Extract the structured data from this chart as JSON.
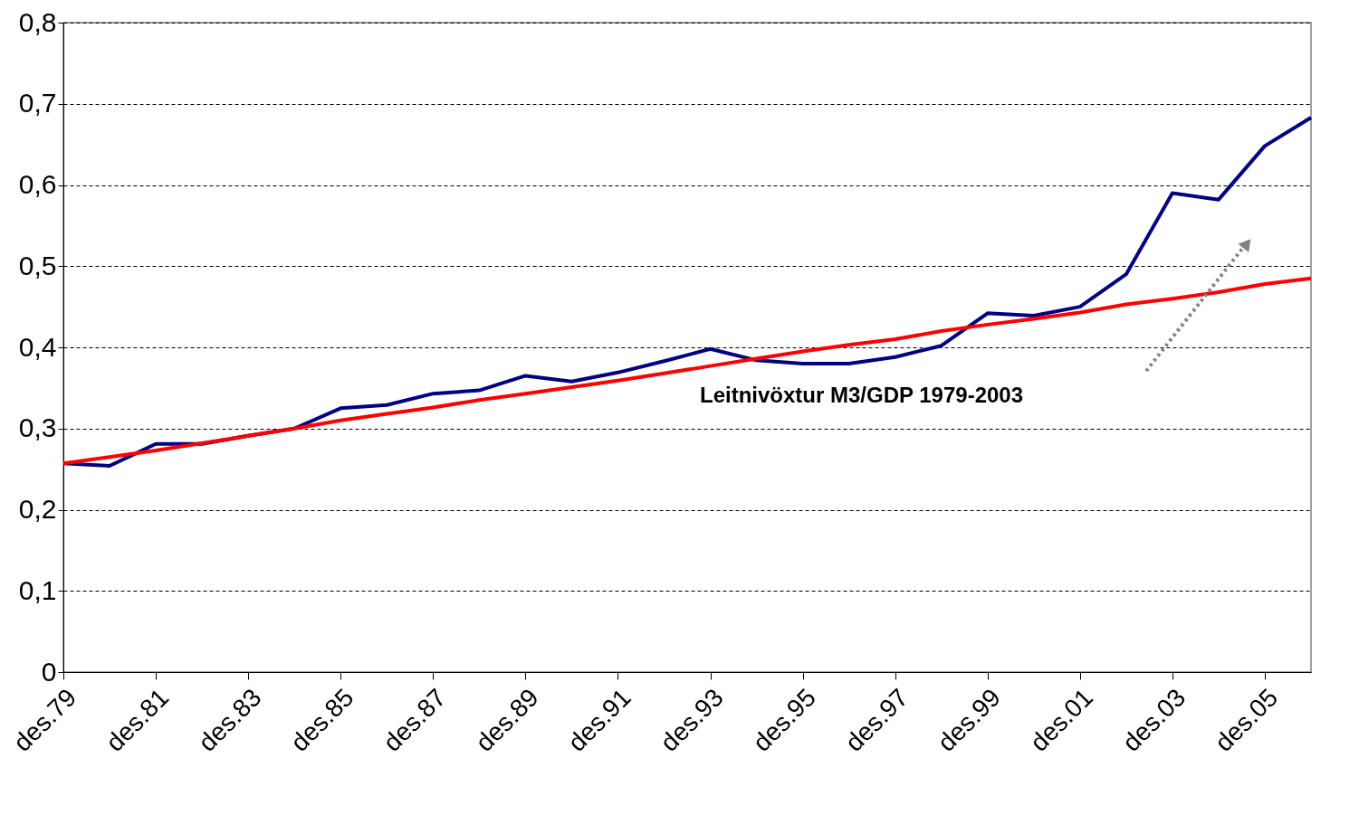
{
  "chart_data": {
    "type": "line",
    "categories": [
      "des.79",
      null,
      "des.81",
      null,
      "des.83",
      null,
      "des.85",
      null,
      "des.87",
      null,
      "des.89",
      null,
      "des.91",
      null,
      "des.93",
      null,
      "des.95",
      null,
      "des.97",
      null,
      "des.99",
      null,
      "des.01",
      null,
      "des.03",
      null,
      "des.05",
      null
    ],
    "series": [
      {
        "color": "#000080",
        "values": [
          0.257,
          0.254,
          0.281,
          0.281,
          0.291,
          0.3,
          0.325,
          0.329,
          0.343,
          0.347,
          0.365,
          0.358,
          0.369,
          0.383,
          0.398,
          0.384,
          0.38,
          0.38,
          0.388,
          0.402,
          0.442,
          0.439,
          0.45,
          0.49,
          0.59,
          0.582,
          0.648,
          0.683
        ]
      },
      {
        "color": "#ff0000",
        "values": [
          0.257,
          0.265,
          0.273,
          0.282,
          0.291,
          0.3,
          0.31,
          0.318,
          0.326,
          0.335,
          0.343,
          0.351,
          0.359,
          0.368,
          0.377,
          0.386,
          0.395,
          0.403,
          0.41,
          0.42,
          0.428,
          0.435,
          0.443,
          0.453,
          0.46,
          0.468,
          0.478,
          0.485
        ]
      }
    ],
    "ylim": [
      0,
      0.8
    ],
    "yticks": [
      0,
      {
        "value": 0.1,
        "label": "0,1"
      },
      {
        "value": 0.2,
        "label": "0,2"
      },
      {
        "value": 0.3,
        "label": "0,3"
      },
      {
        "value": 0.4,
        "label": "0,4"
      },
      {
        "value": 0.5,
        "label": "0,5"
      },
      {
        "value": 0.6,
        "label": "0,6"
      },
      {
        "value": 0.7,
        "label": "0,7"
      },
      {
        "value": 0.8,
        "label": "0,8"
      }
    ],
    "grid": "y",
    "legend": false,
    "marker": "none",
    "line_style": "solid",
    "annotations": [
      "Leitnivöxtur M3/GDP 1979-2003"
    ]
  }
}
